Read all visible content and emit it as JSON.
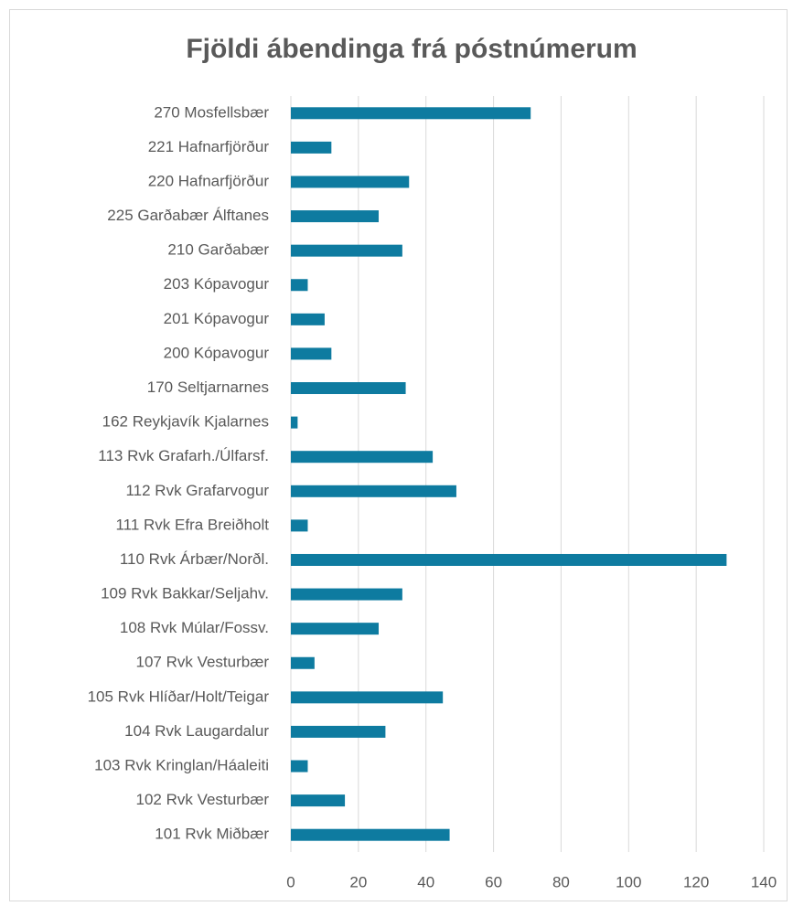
{
  "chart_data": {
    "type": "bar",
    "orientation": "horizontal",
    "title": "Fjöldi ábendinga frá póstnúmerum",
    "categories": [
      "270 Mosfellsbær",
      "221 Hafnarfjörður",
      "220 Hafnarfjörður",
      "225 Garðabær Álftanes",
      "210 Garðabær",
      "203 Kópavogur",
      "201 Kópavogur",
      "200 Kópavogur",
      "170 Seltjarnarnes",
      "162 Reykjavík Kjalarnes",
      "113 Rvk Grafarh./Úlfarsf.",
      "112 Rvk Grafarvogur",
      "111 Rvk Efra Breiðholt",
      "110 Rvk Árbær/Norðl.",
      "109 Rvk Bakkar/Seljahv.",
      "108 Rvk Múlar/Fossv.",
      "107 Rvk Vesturbær",
      "105 Rvk Hlíðar/Holt/Teigar",
      "104 Rvk Laugardalur",
      "103 Rvk Kringlan/Háaleiti",
      "102 Rvk Vesturbær",
      "101 Rvk Miðbær"
    ],
    "values": [
      71,
      12,
      35,
      26,
      33,
      5,
      10,
      12,
      34,
      2,
      42,
      49,
      5,
      129,
      33,
      26,
      7,
      45,
      28,
      5,
      16,
      47
    ],
    "color": "#0e7ba0",
    "xlim": [
      0,
      140
    ],
    "xticks": [
      0,
      20,
      40,
      60,
      80,
      100,
      120,
      140
    ],
    "grid": true
  }
}
